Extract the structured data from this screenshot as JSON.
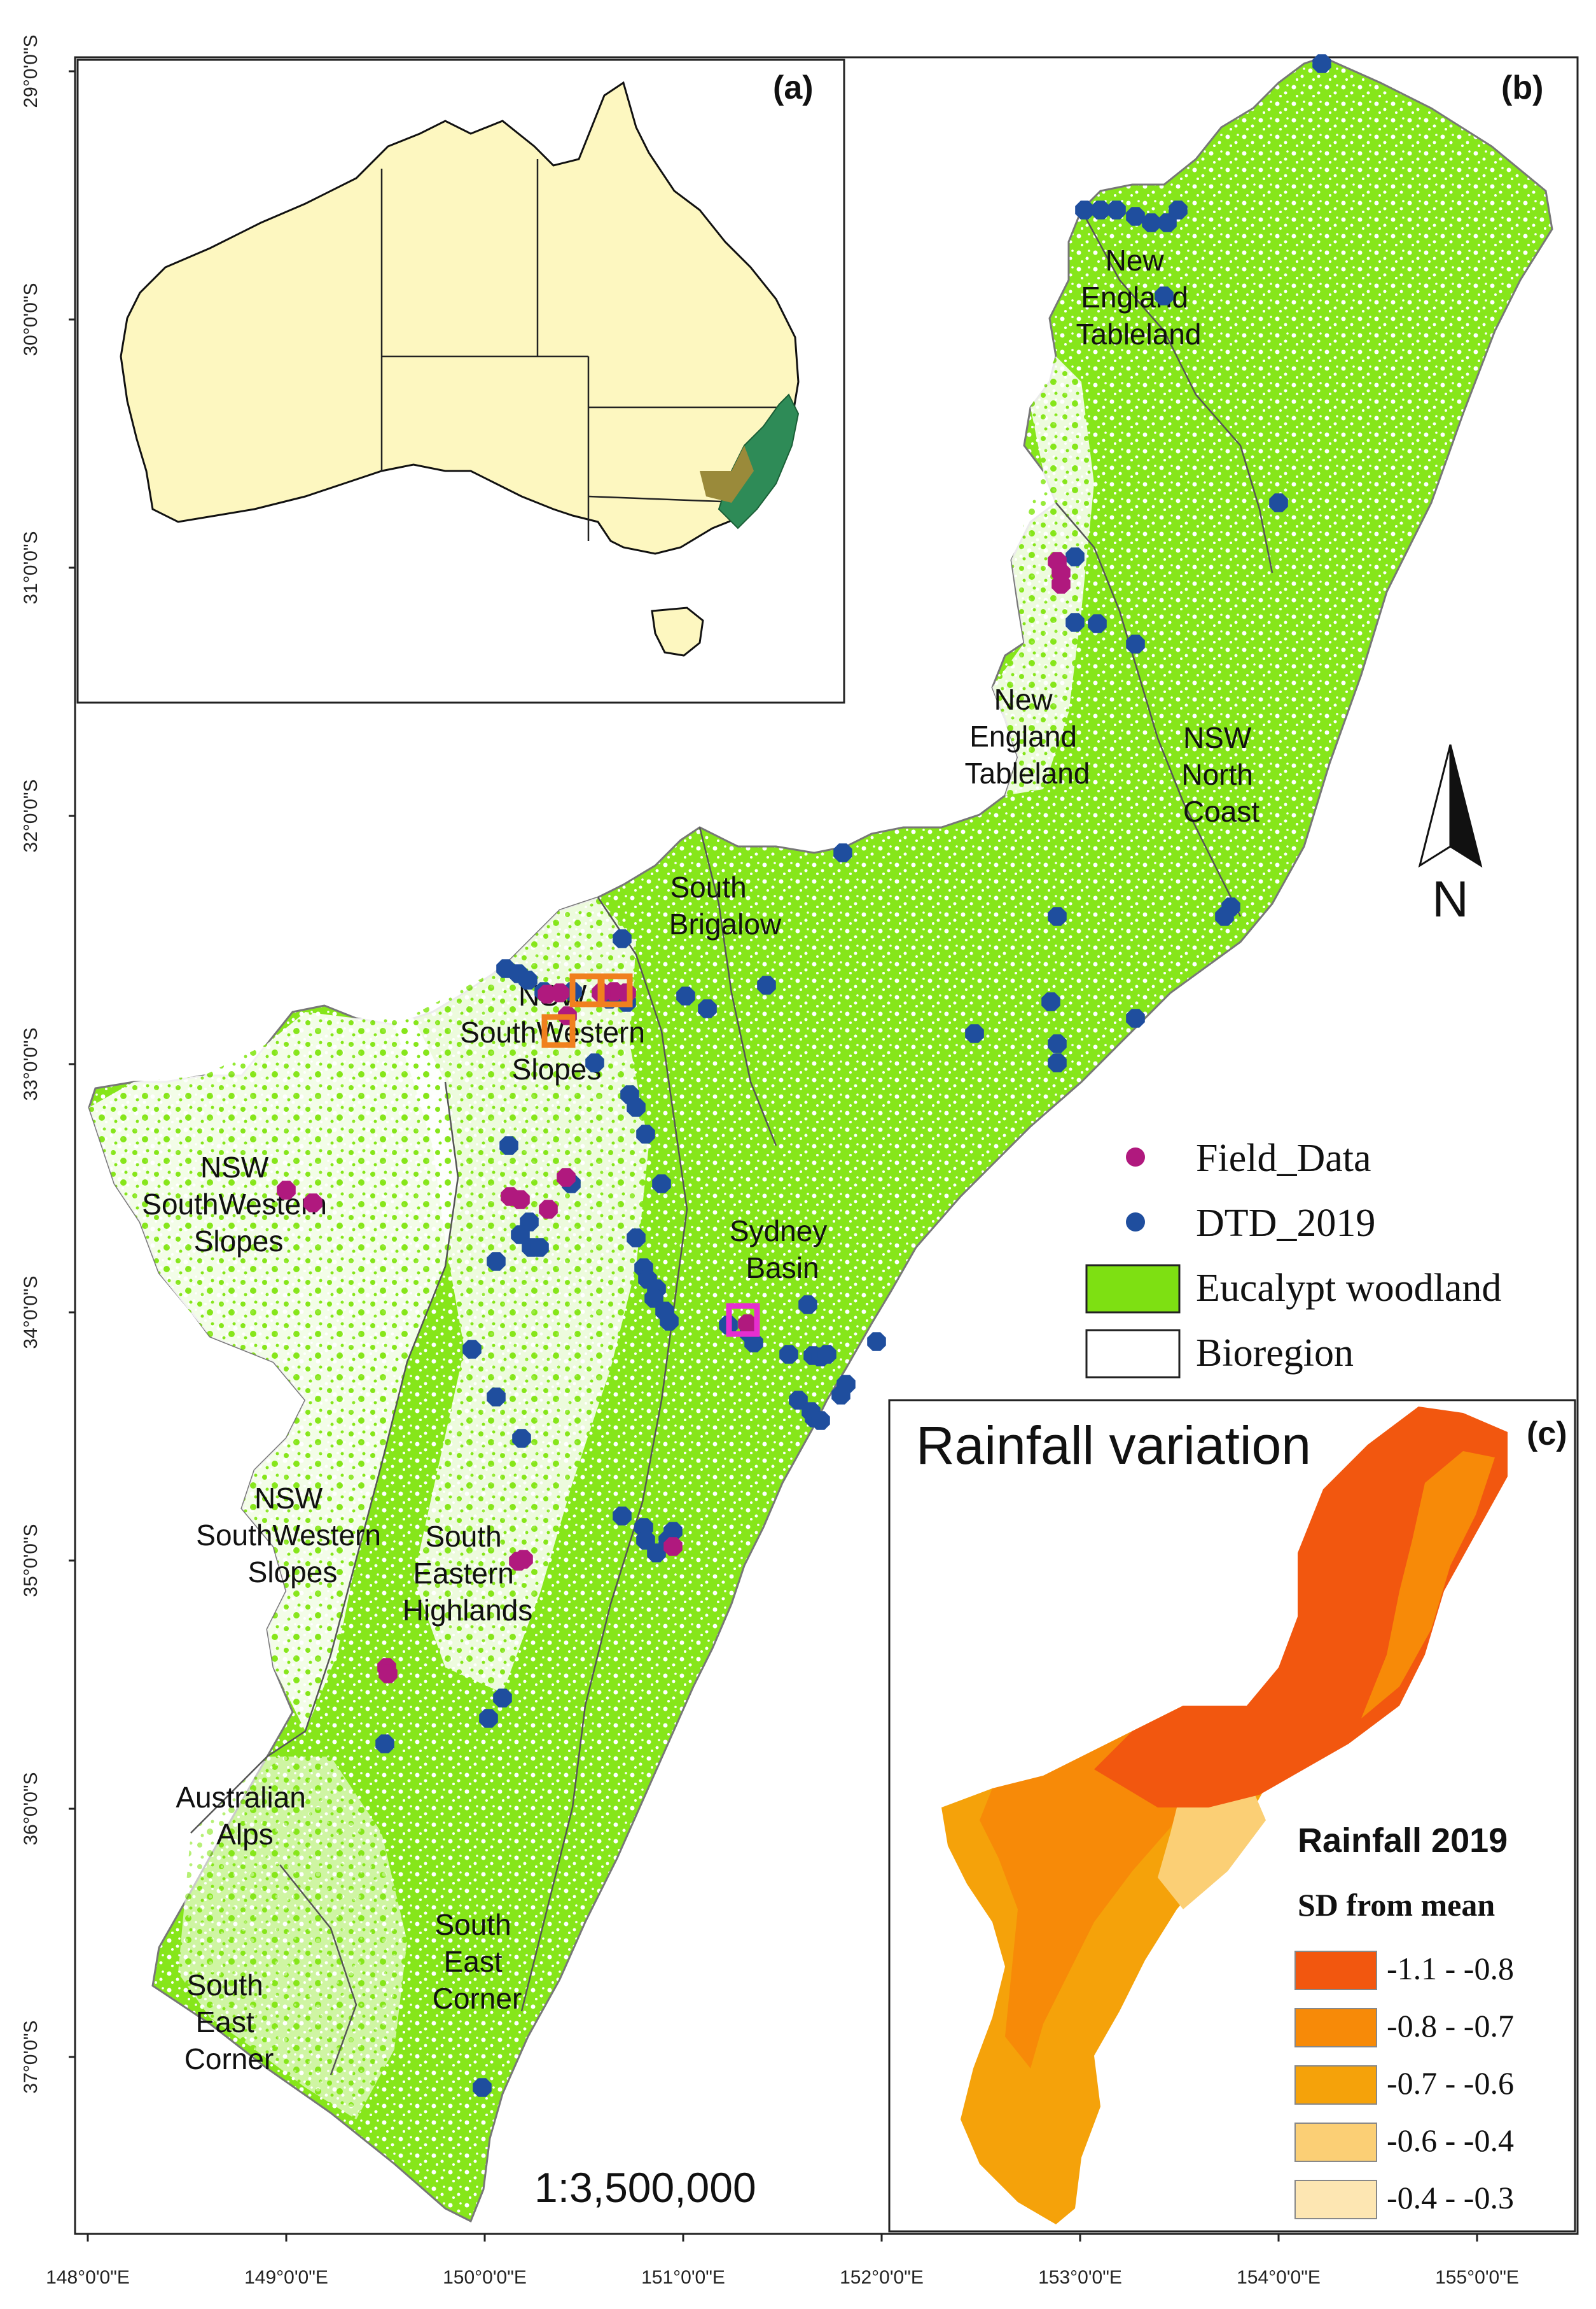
{
  "panels": {
    "a": "(a)",
    "b": "(b)",
    "c": "(c)"
  },
  "lat_labels": [
    "29°0'0\"S",
    "30°0'0\"S",
    "31°0'0\"S",
    "32°0'0\"S",
    "33°0'0\"S",
    "34°0'0\"S",
    "35°0'0\"S",
    "36°0'0\"S",
    "37°0'0\"S"
  ],
  "lon_labels": [
    "148°0'0\"E",
    "149°0'0\"E",
    "150°0'0\"E",
    "151°0'0\"E",
    "152°0'0\"E",
    "153°0'0\"E",
    "154°0'0\"E",
    "155°0'0\"E"
  ],
  "regions": {
    "net_north": [
      "New",
      "England",
      "Tableland"
    ],
    "net_south": [
      "New",
      "England",
      "Tableland"
    ],
    "nsw_north_coast": [
      "NSW",
      "North",
      "Coast"
    ],
    "south_brigalow": [
      "South",
      "Brigalow"
    ],
    "nsw_sws_north": [
      "NSW",
      "SouthWestern",
      "Slopes"
    ],
    "nsw_sws_west": [
      "NSW",
      "SouthWestern",
      "Slopes"
    ],
    "nsw_sws_south": [
      "NSW",
      "SouthWestern",
      "Slopes"
    ],
    "sydney_basin": [
      "Sydney",
      "Basin"
    ],
    "south_eastern_highlands": [
      "South",
      "Eastern",
      "Highlands"
    ],
    "australian_alps": [
      "Australian",
      "Alps"
    ],
    "south_east_corner_east": [
      "South",
      "East",
      "Corner"
    ],
    "south_east_corner_west": [
      "South",
      "East",
      "Corner"
    ]
  },
  "legend": {
    "field_data": "Field_Data",
    "dtd_2019": "DTD_2019",
    "eucalypt": "Eucalypt woodland",
    "bioregion": "Bioregion"
  },
  "colors": {
    "field_data": "#b0197e",
    "dtd_2019": "#1f4e9e",
    "eucalypt": "#7ee012",
    "inset_land": "#fdf7c0",
    "rain_classes": [
      "#f2570f",
      "#f78a08",
      "#f5a20a",
      "#fbcf75",
      "#fde6b2"
    ]
  },
  "north_arrow": "N",
  "scale": "1:3,500,000",
  "rainfall": {
    "title": "Rainfall variation",
    "legend_title": "Rainfall 2019",
    "legend_subtitle": "SD from mean",
    "classes": [
      "-1.1 - -0.8",
      "-0.8 - -0.7",
      "-0.7 - -0.6",
      "-0.6 - -0.4",
      "-0.4 - -0.3"
    ]
  }
}
